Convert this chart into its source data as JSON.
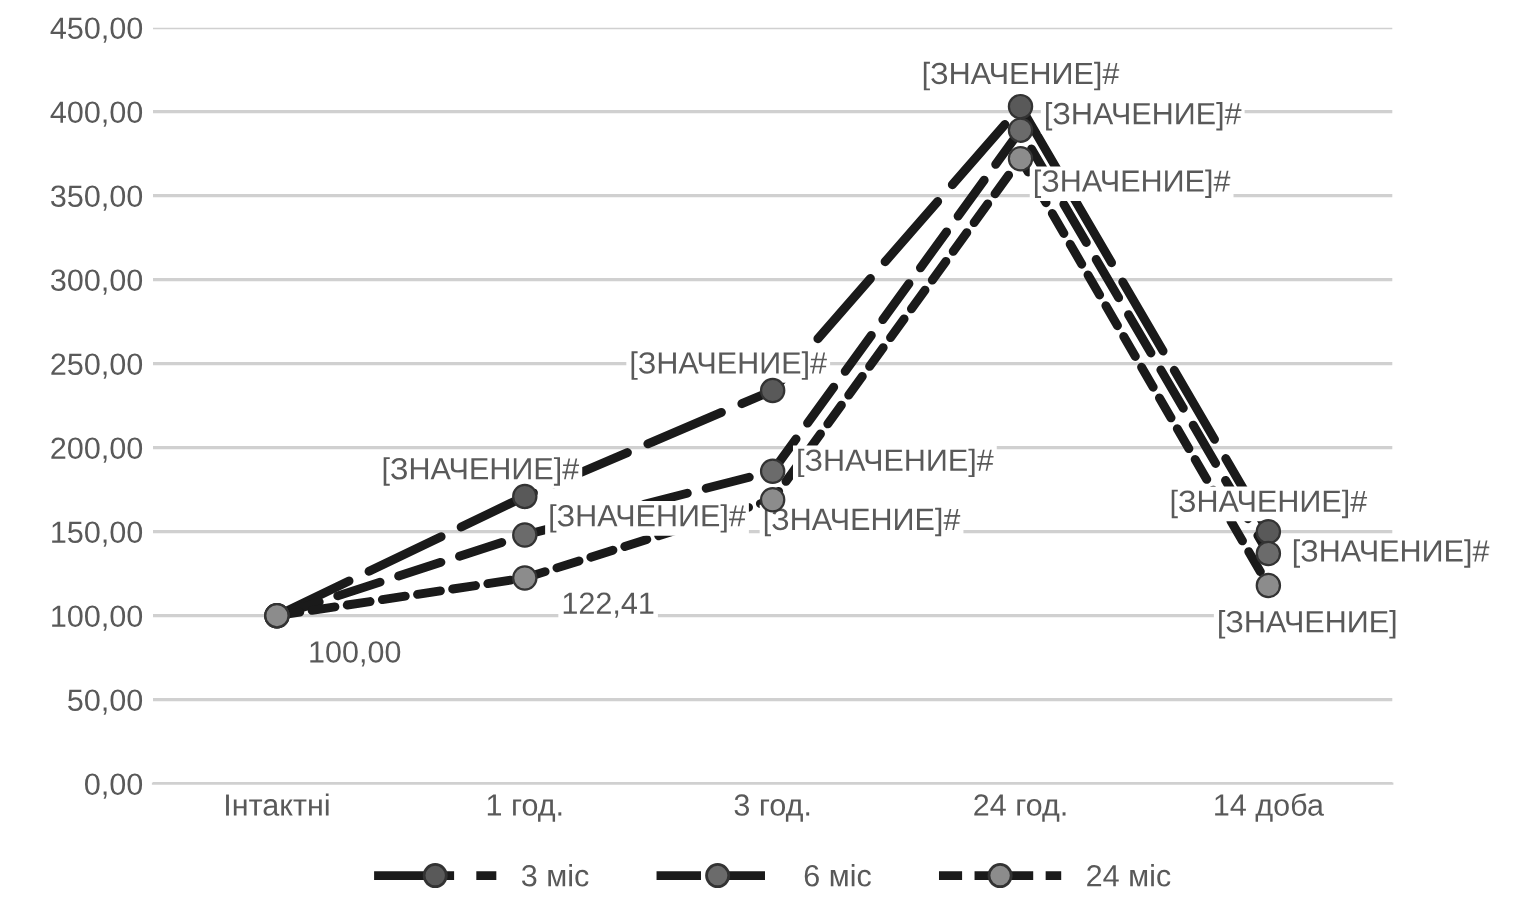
{
  "chart_data": {
    "type": "line",
    "categories": [
      "Інтактні",
      "1 год.",
      "3 год.",
      "24 год.",
      "14 доба"
    ],
    "series": [
      {
        "name": "3 міс",
        "color": "#595959",
        "line_style": "dashed",
        "values": [
          100,
          171,
          234,
          403,
          150
        ],
        "value_labels": [
          null,
          "[ЗНАЧЕНИЕ]#",
          "[ЗНАЧЕНИЕ]#",
          "[ЗНАЧЕНИЕ]#",
          "[ЗНАЧЕНИЕ]#"
        ]
      },
      {
        "name": "6 міс",
        "color": "#6b6b6b",
        "line_style": "dashed",
        "values": [
          100,
          148,
          186,
          389,
          137
        ],
        "value_labels": [
          null,
          "[ЗНАЧЕНИЕ]#",
          "[ЗНАЧЕНИЕ]#",
          "[ЗНАЧЕНИЕ]#",
          "[ЗНАЧЕНИЕ]#"
        ]
      },
      {
        "name": "24 міс",
        "color": "#8c8c8c",
        "line_style": "dotted",
        "values": [
          100,
          122.41,
          169,
          372,
          118
        ],
        "value_labels": [
          "100,00",
          "122,41",
          "[ЗНАЧЕНИЕ]#",
          "[ЗНАЧЕНИЕ]#",
          "[ЗНАЧЕНИЕ]"
        ]
      }
    ],
    "ylim": [
      0,
      450
    ],
    "yticks": [
      {
        "value": 0,
        "label": "0,00"
      },
      {
        "value": 50,
        "label": "50,00"
      },
      {
        "value": 100,
        "label": "100,00"
      },
      {
        "value": 150,
        "label": "150,00"
      },
      {
        "value": 200,
        "label": "200,00"
      },
      {
        "value": 250,
        "label": "250,00"
      },
      {
        "value": 300,
        "label": "300,00"
      },
      {
        "value": 350,
        "label": "350,00"
      },
      {
        "value": 400,
        "label": "400,00"
      },
      {
        "value": 450,
        "label": "450,00"
      }
    ],
    "grid": "y",
    "legend": "bottom",
    "marker": "circle"
  }
}
